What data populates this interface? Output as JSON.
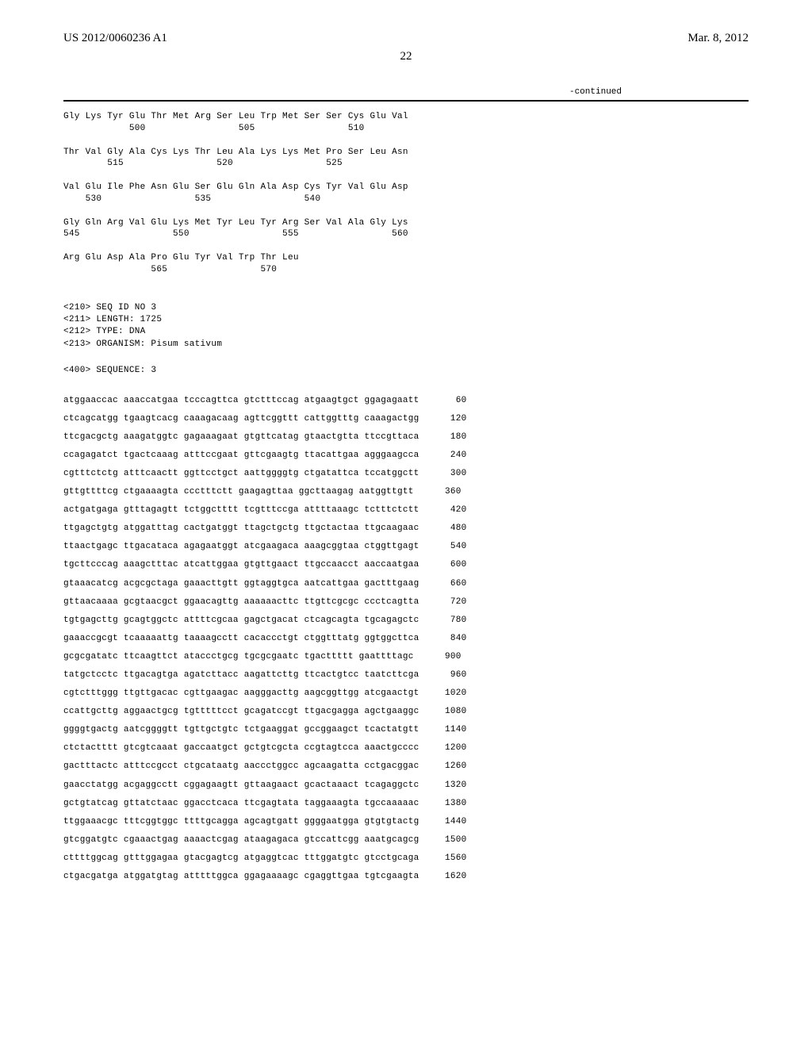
{
  "header": {
    "pub_number": "US 2012/0060236 A1",
    "pub_date": "Mar. 8, 2012",
    "page": "22",
    "continued": "-continued"
  },
  "protein_rows": [
    {
      "aa": "Gly Lys Tyr Glu Thr Met Arg Ser Leu Trp Met Ser Ser Cys Glu Val",
      "nums": "            500                 505                 510"
    },
    {
      "aa": "Thr Val Gly Ala Cys Lys Thr Leu Ala Lys Lys Met Pro Ser Leu Asn",
      "nums": "        515                 520                 525"
    },
    {
      "aa": "Val Glu Ile Phe Asn Glu Ser Glu Gln Ala Asp Cys Tyr Val Glu Asp",
      "nums": "    530                 535                 540"
    },
    {
      "aa": "Gly Gln Arg Val Glu Lys Met Tyr Leu Tyr Arg Ser Val Ala Gly Lys",
      "nums": "545                 550                 555                 560"
    },
    {
      "aa": "Arg Glu Asp Ala Pro Glu Tyr Val Trp Thr Leu",
      "nums": "                565                 570"
    }
  ],
  "seq_meta": {
    "l1": "<210> SEQ ID NO 3",
    "l2": "<211> LENGTH: 1725",
    "l3": "<212> TYPE: DNA",
    "l4": "<213> ORGANISM: Pisum sativum",
    "l5": "<400> SEQUENCE: 3"
  },
  "dna": [
    {
      "s": "atggaaccac aaaccatgaa tcccagttca gtctttccag atgaagtgct ggagagaatt",
      "p": "60"
    },
    {
      "s": "ctcagcatgg tgaagtcacg caaagacaag agttcggttt cattggtttg caaagactgg",
      "p": "120"
    },
    {
      "s": "ttcgacgctg aaagatggtc gagaaagaat gtgttcatag gtaactgtta ttccgttaca",
      "p": "180"
    },
    {
      "s": "ccagagatct tgactcaaag atttccgaat gttcgaagtg ttacattgaa agggaagcca",
      "p": "240"
    },
    {
      "s": "cgtttctctg atttcaactt ggttcctgct aattggggtg ctgatattca tccatggctt",
      "p": "300"
    },
    {
      "s": "gttgttttcg ctgaaaagta ccctttctt gaagagttaa ggcttaagag aatggttgtt",
      "p": "360"
    },
    {
      "s": "actgatgaga gtttagagtt tctggctttt tcgtttccga attttaaagc tctttctctt",
      "p": "420"
    },
    {
      "s": "ttgagctgtg atggatttag cactgatggt ttagctgctg ttgctactaa ttgcaagaac",
      "p": "480"
    },
    {
      "s": "ttaactgagc ttgacataca agagaatggt atcgaagaca aaagcggtaa ctggttgagt",
      "p": "540"
    },
    {
      "s": "tgcttcccag aaagctttac atcattggaa gtgttgaact ttgccaacct aaccaatgaa",
      "p": "600"
    },
    {
      "s": "gtaaacatcg acgcgctaga gaaacttgtt ggtaggtgca aatcattgaa gactttgaag",
      "p": "660"
    },
    {
      "s": "gttaacaaaa gcgtaacgct ggaacagttg aaaaaacttc ttgttcgcgc ccctcagtta",
      "p": "720"
    },
    {
      "s": "tgtgagcttg gcagtggctc attttcgcaa gagctgacat ctcagcagta tgcagagctc",
      "p": "780"
    },
    {
      "s": "gaaaccgcgt tcaaaaattg taaaagcctt cacaccctgt ctggtttatg ggtggcttca",
      "p": "840"
    },
    {
      "s": "gcgcgatatc ttcaagttct ataccctgcg tgcgcgaatc tgacttttt gaattttagc",
      "p": "900"
    },
    {
      "s": "tatgctcctc ttgacagtga agatcttacc aagattcttg ttcactgtcc taatcttcga",
      "p": "960"
    },
    {
      "s": "cgtctttggg ttgttgacac cgttgaagac aagggacttg aagcggttgg atcgaactgt",
      "p": "1020"
    },
    {
      "s": "ccattgcttg aggaactgcg tgtttttcct gcagatccgt ttgacgagga agctgaaggc",
      "p": "1080"
    },
    {
      "s": "ggggtgactg aatcggggtt tgttgctgtc tctgaaggat gccggaagct tcactatgtt",
      "p": "1140"
    },
    {
      "s": "ctctactttt gtcgtcaaat gaccaatgct gctgtcgcta ccgtagtcca aaactgcccc",
      "p": "1200"
    },
    {
      "s": "gactttactc atttccgcct ctgcataatg aaccctggcc agcaagatta cctgacggac",
      "p": "1260"
    },
    {
      "s": "gaacctatgg acgaggcctt cggagaagtt gttaagaact gcactaaact tcagaggctc",
      "p": "1320"
    },
    {
      "s": "gctgtatcag gttatctaac ggacctcaca ttcgagtata taggaaagta tgccaaaaac",
      "p": "1380"
    },
    {
      "s": "ttggaaacgc tttcggtggc ttttgcagga agcagtgatt ggggaatgga gtgtgtactg",
      "p": "1440"
    },
    {
      "s": "gtcggatgtc cgaaactgag aaaactcgag ataagagaca gtccattcgg aaatgcagcg",
      "p": "1500"
    },
    {
      "s": "cttttggcag gtttggagaa gtacgagtcg atgaggtcac tttggatgtc gtcctgcaga",
      "p": "1560"
    },
    {
      "s": "ctgacgatga atggatgtag atttttggca ggagaaaagc cgaggttgaa tgtcgaagta",
      "p": "1620"
    }
  ]
}
